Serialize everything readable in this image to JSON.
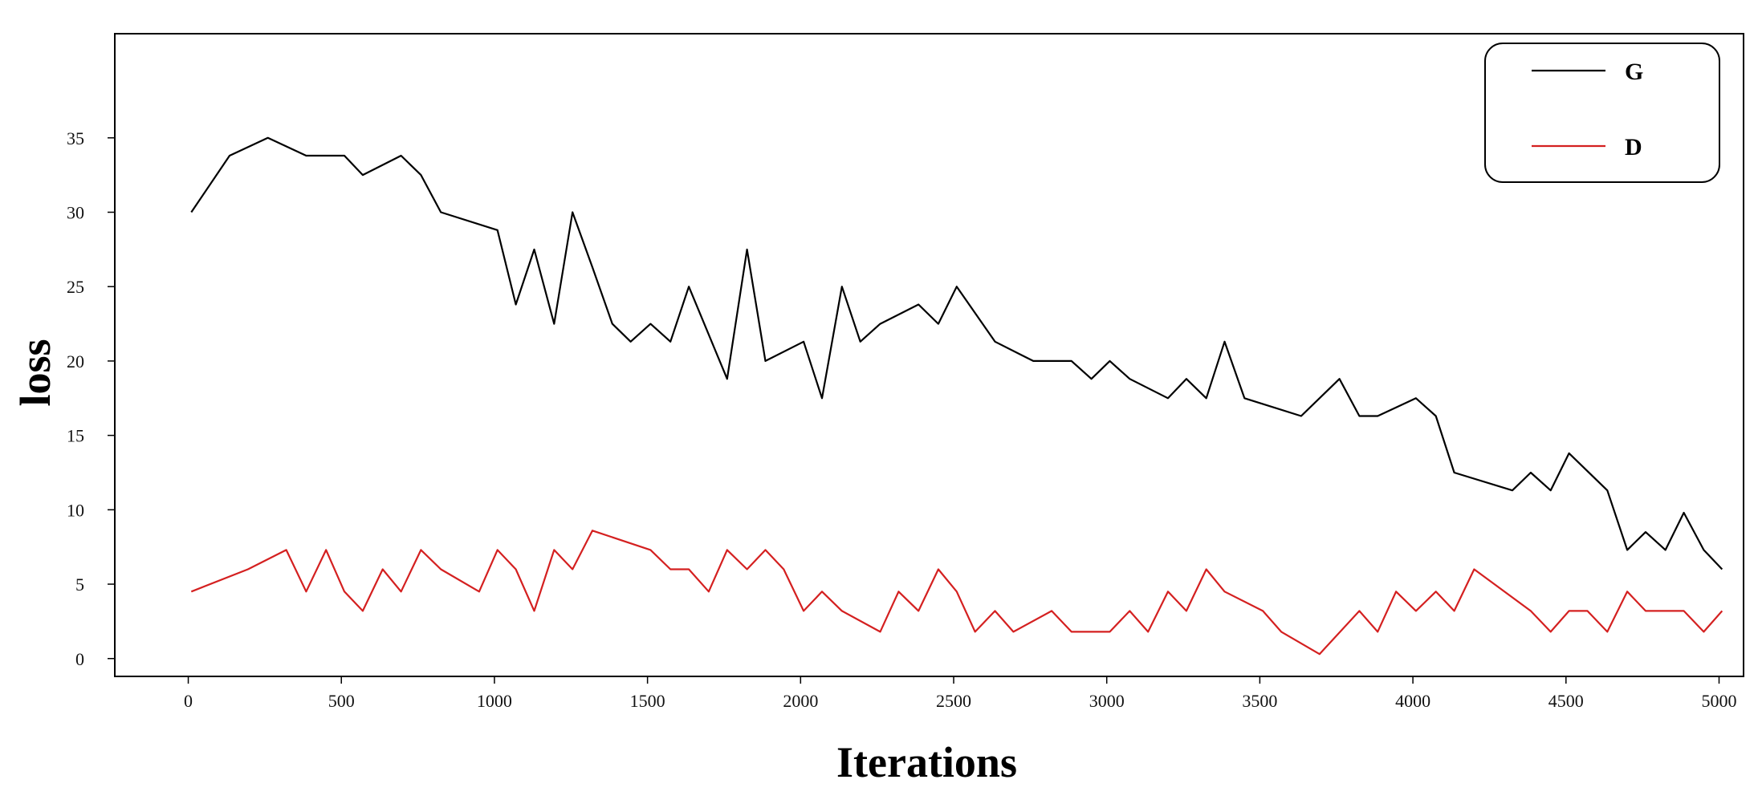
{
  "chart_data": {
    "type": "line",
    "title": "",
    "xlabel": "Iterations",
    "ylabel": "loss",
    "xlim": [
      -240,
      5080
    ],
    "ylim": [
      -1.2,
      42
    ],
    "xticks": [
      0,
      500,
      1000,
      1500,
      2000,
      2500,
      3000,
      3500,
      4000,
      4500,
      5000
    ],
    "yticks": [
      0,
      5,
      10,
      15,
      20,
      25,
      30,
      35
    ],
    "grid": false,
    "legend_position": "top-right",
    "series": [
      {
        "name": "G",
        "color": "#000000",
        "x": [
          10,
          135,
          260,
          385,
          510,
          570,
          695,
          760,
          825,
          1010,
          1070,
          1130,
          1195,
          1255,
          1320,
          1385,
          1445,
          1510,
          1575,
          1635,
          1760,
          1825,
          1885,
          2010,
          2070,
          2135,
          2195,
          2260,
          2385,
          2450,
          2510,
          2635,
          2760,
          2885,
          2950,
          3010,
          3075,
          3200,
          3260,
          3325,
          3385,
          3450,
          3635,
          3760,
          3825,
          3885,
          4010,
          4075,
          4135,
          4325,
          4385,
          4450,
          4510,
          4635,
          4700,
          4760,
          4825,
          4885,
          4950,
          5010
        ],
        "values": [
          30.0,
          33.8,
          35.0,
          33.8,
          33.8,
          32.5,
          33.8,
          32.5,
          30.0,
          28.8,
          23.8,
          27.5,
          22.5,
          30.0,
          26.3,
          22.5,
          21.3,
          22.5,
          21.3,
          25.0,
          18.8,
          27.5,
          20.0,
          21.3,
          17.5,
          25.0,
          21.3,
          22.5,
          23.8,
          22.5,
          25.0,
          21.3,
          20.0,
          20.0,
          18.8,
          20.0,
          18.8,
          17.5,
          18.8,
          17.5,
          21.3,
          17.5,
          16.3,
          18.8,
          16.3,
          16.3,
          17.5,
          16.3,
          12.5,
          11.3,
          12.5,
          11.3,
          13.8,
          11.3,
          7.3,
          8.5,
          7.3,
          9.8,
          7.3,
          6.0
        ]
      },
      {
        "name": "D",
        "color": "#d42020",
        "x": [
          10,
          195,
          320,
          385,
          450,
          510,
          570,
          635,
          695,
          760,
          825,
          950,
          1010,
          1070,
          1130,
          1195,
          1255,
          1320,
          1510,
          1575,
          1635,
          1700,
          1760,
          1825,
          1885,
          1945,
          2010,
          2070,
          2135,
          2260,
          2320,
          2385,
          2450,
          2510,
          2570,
          2635,
          2695,
          2820,
          2885,
          3010,
          3075,
          3135,
          3200,
          3260,
          3325,
          3385,
          3510,
          3570,
          3695,
          3825,
          3885,
          3945,
          4010,
          4075,
          4135,
          4200,
          4385,
          4450,
          4510,
          4570,
          4635,
          4700,
          4760,
          4885,
          4950,
          5010
        ],
        "values": [
          4.5,
          6.0,
          7.3,
          4.5,
          7.3,
          4.5,
          3.2,
          6.0,
          4.5,
          7.3,
          6.0,
          4.5,
          7.3,
          6.0,
          3.2,
          7.3,
          6.0,
          8.6,
          7.3,
          6.0,
          6.0,
          4.5,
          7.3,
          6.0,
          7.3,
          6.0,
          3.2,
          4.5,
          3.2,
          1.8,
          4.5,
          3.2,
          6.0,
          4.5,
          1.8,
          3.2,
          1.8,
          3.2,
          1.8,
          1.8,
          3.2,
          1.8,
          4.5,
          3.2,
          6.0,
          4.5,
          3.2,
          1.8,
          0.3,
          3.2,
          1.8,
          4.5,
          3.2,
          4.5,
          3.2,
          6.0,
          3.2,
          1.8,
          3.2,
          3.2,
          1.8,
          4.5,
          3.2,
          3.2,
          1.8,
          3.2
        ]
      }
    ]
  }
}
